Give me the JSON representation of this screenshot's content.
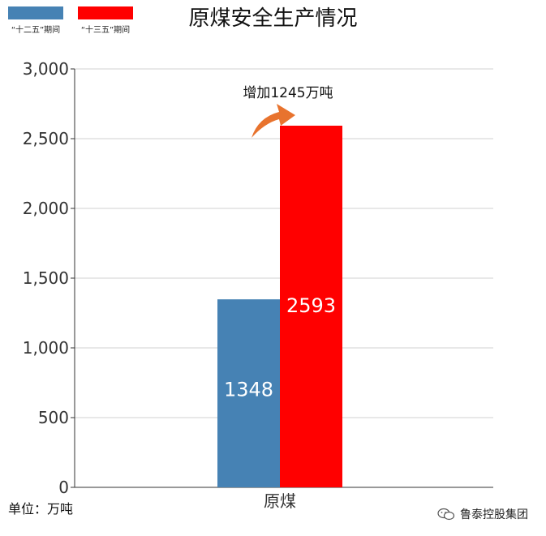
{
  "chart_data": {
    "type": "bar",
    "title": "原煤安全生产情况",
    "categories": [
      "原煤"
    ],
    "series": [
      {
        "name": "“十二五”期间",
        "color": "#4682B4",
        "values": [
          1348
        ]
      },
      {
        "name": "“十三五”期间",
        "color": "#FF0000",
        "values": [
          2593
        ]
      }
    ],
    "ylim": [
      0,
      3000
    ],
    "yticks": [
      "0",
      "500",
      "1,000",
      "1,500",
      "2,000",
      "2,500",
      "3,000"
    ],
    "ytick_values": [
      0,
      500,
      1000,
      1500,
      2000,
      2500,
      3000
    ],
    "grid": true,
    "legend_position": "top-left",
    "annotation": "增加1245万吨",
    "unit_label": "单位：万吨"
  },
  "watermark": {
    "text": "鲁泰控股集团",
    "icon": "wechat-icon"
  }
}
